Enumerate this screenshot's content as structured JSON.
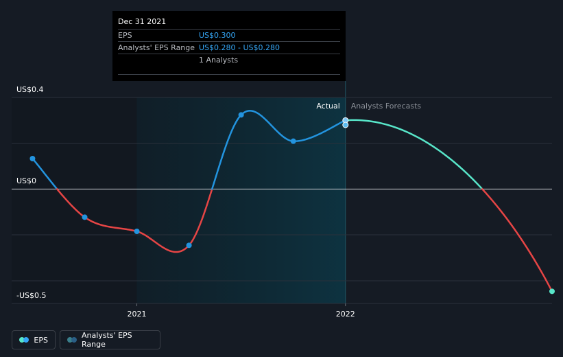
{
  "tooltip": {
    "date": "Dec 31 2021",
    "eps_label": "EPS",
    "eps_value": "US$0.300",
    "range_label": "Analysts' EPS Range",
    "range_value": "US$0.280 - US$0.280",
    "analysts": "1 Analysts"
  },
  "labels": {
    "actual": "Actual",
    "forecasts": "Analysts Forecasts"
  },
  "legend": {
    "eps": "EPS",
    "range": "Analysts' EPS Range"
  },
  "colors": {
    "background": "#151b24",
    "positive": "#2394df",
    "negative": "#e64545",
    "forecast": "#58e6c9",
    "range_dot": "#2a6f86"
  },
  "chart_data": {
    "type": "line",
    "y_ticks": [
      {
        "value": 0.4,
        "label": "US$0.4"
      },
      {
        "value": 0,
        "label": "US$0"
      },
      {
        "value": -0.5,
        "label": "-US$0.5"
      }
    ],
    "ylim": [
      -0.5,
      0.4
    ],
    "x_ticks": [
      {
        "value": 2021.0,
        "label": "2021"
      },
      {
        "value": 2022.0,
        "label": "2022"
      }
    ],
    "xlim": [
      2020.4,
      2022.99
    ],
    "highlight_range": [
      2021.0,
      2022.0
    ],
    "series": [
      {
        "name": "EPS",
        "kind": "actual",
        "points": [
          {
            "x": 2020.5,
            "y": 0.133
          },
          {
            "x": 2020.75,
            "y": -0.123
          },
          {
            "x": 2021.0,
            "y": -0.185
          },
          {
            "x": 2021.25,
            "y": -0.246
          },
          {
            "x": 2021.5,
            "y": 0.324
          },
          {
            "x": 2021.75,
            "y": 0.209
          },
          {
            "x": 2022.0,
            "y": 0.3
          }
        ]
      },
      {
        "name": "Analysts Forecasts",
        "kind": "forecast",
        "points": [
          {
            "x": 2022.0,
            "y": 0.3
          },
          {
            "x": 2022.99,
            "y": -0.447
          }
        ]
      }
    ],
    "range_points": [
      {
        "x": 2022.0,
        "y": 0.28
      }
    ]
  }
}
